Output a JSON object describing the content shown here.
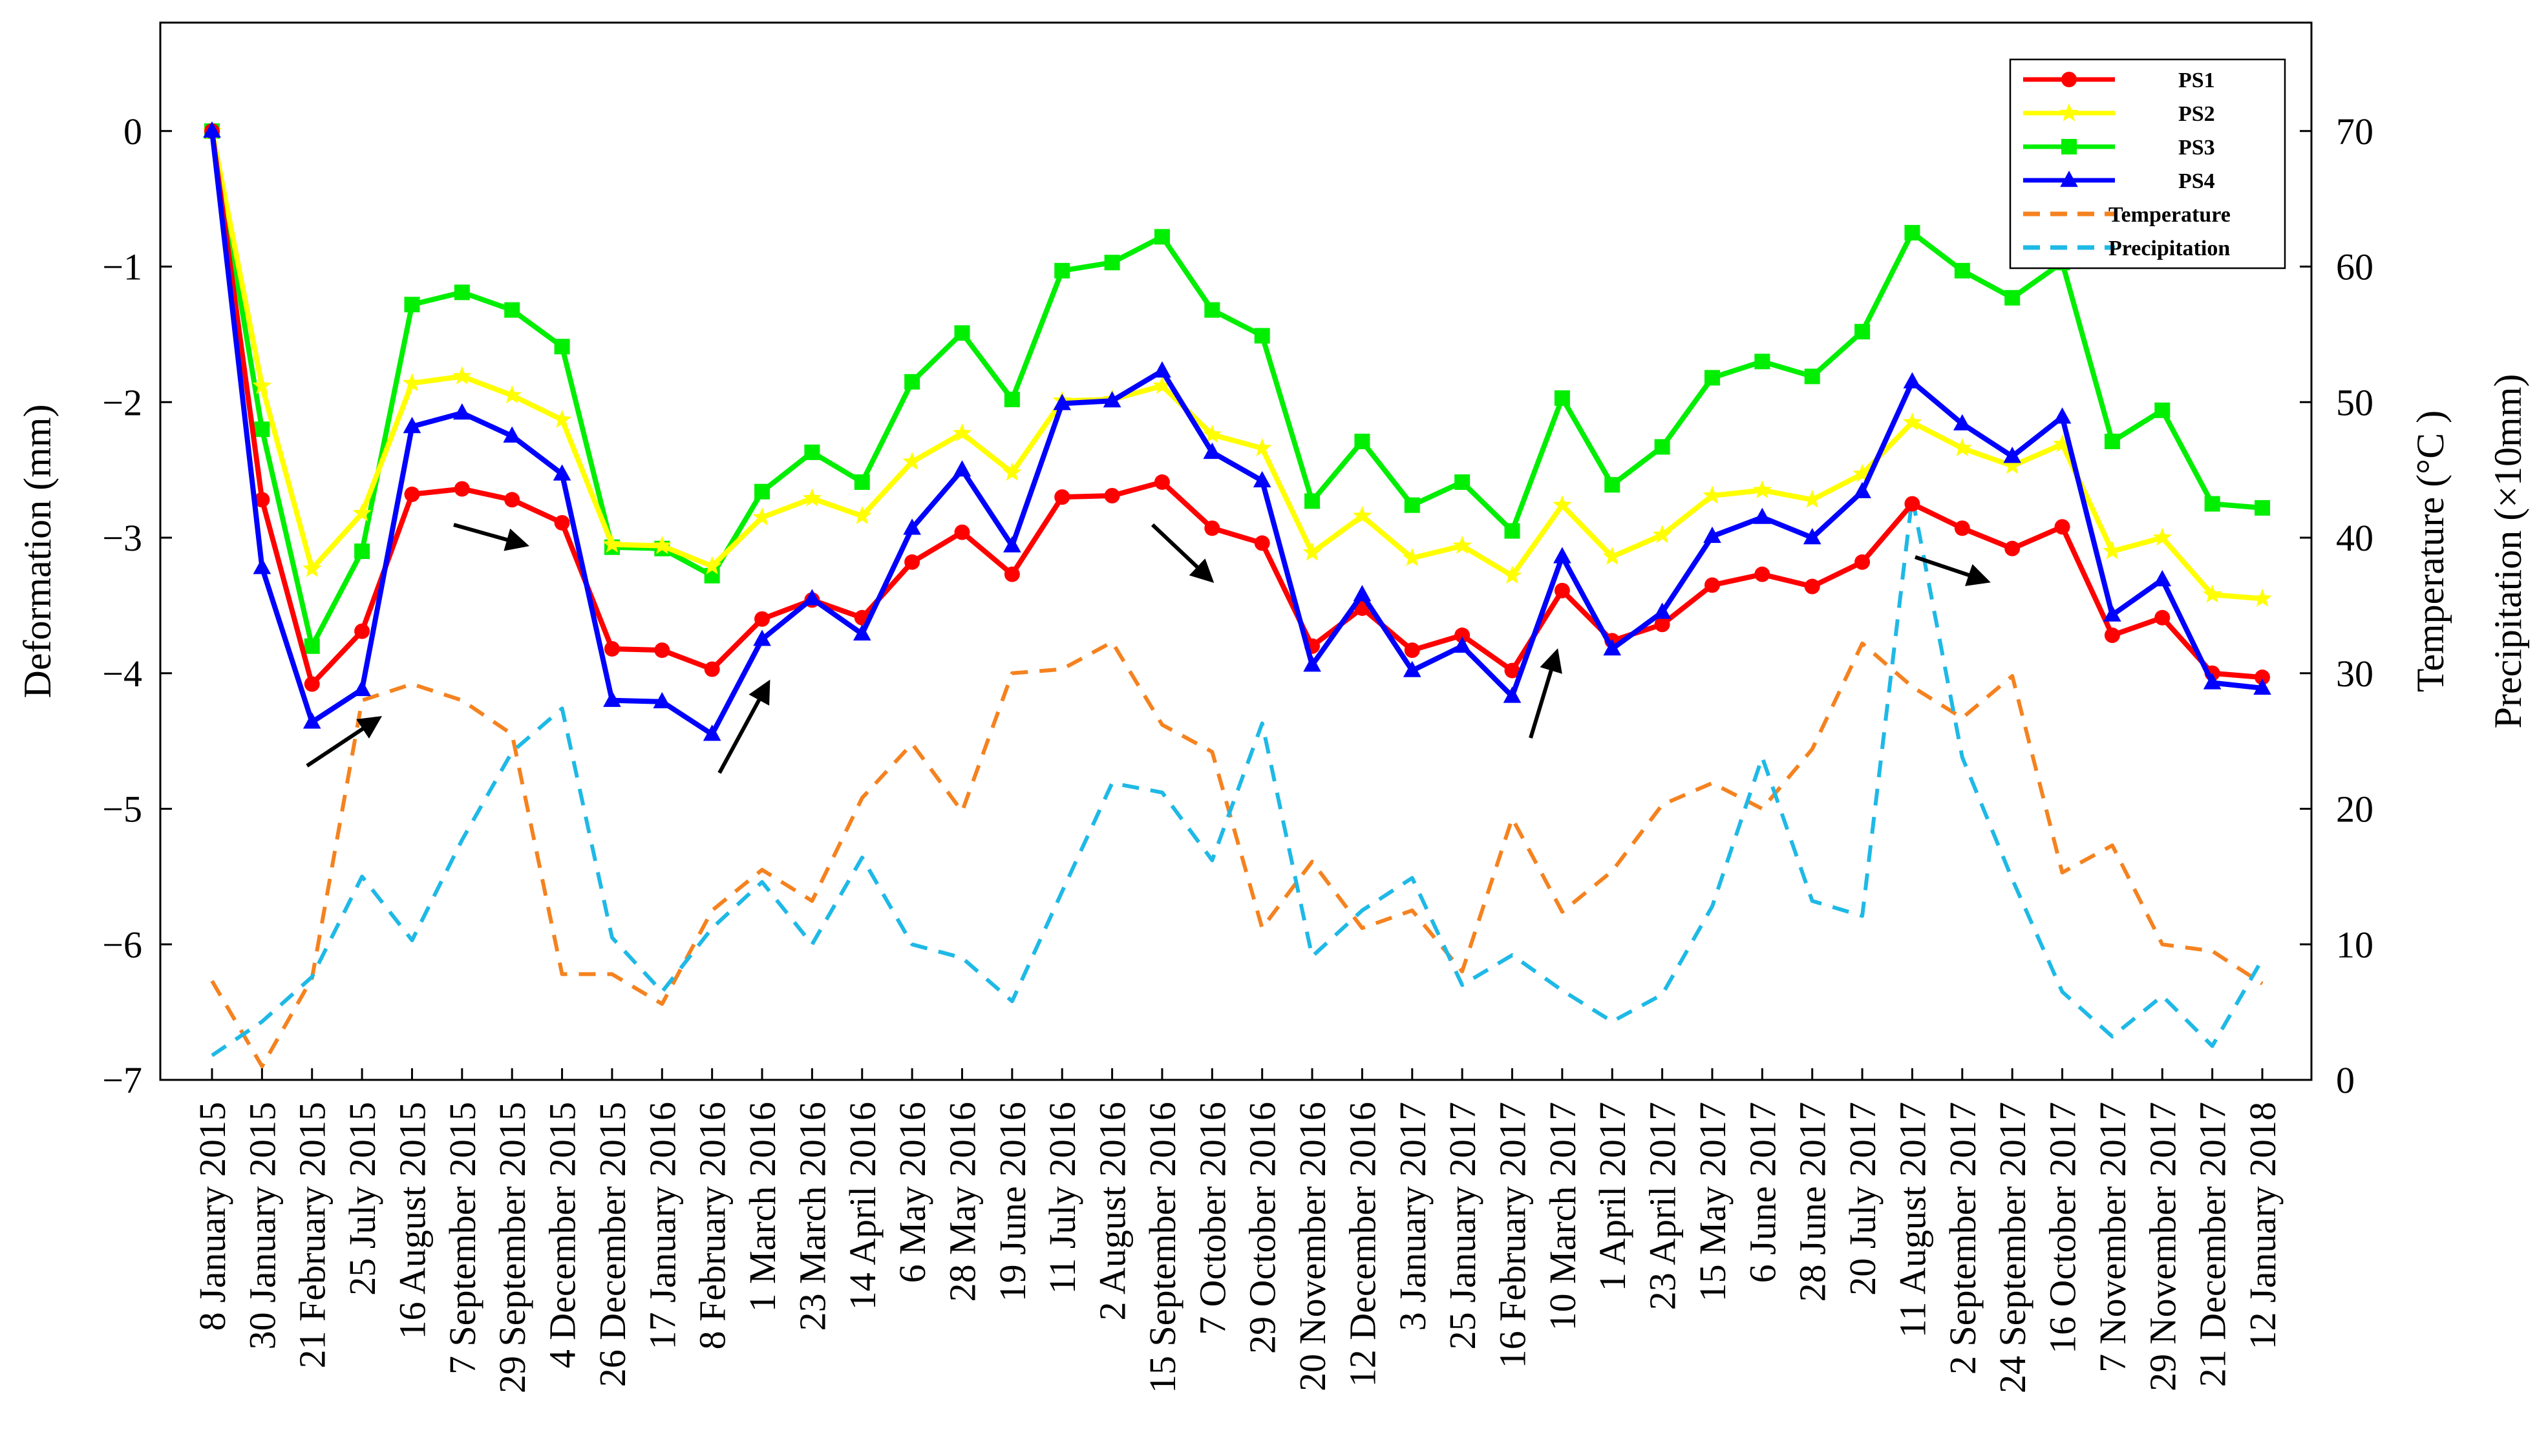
{
  "chart_data": {
    "type": "line",
    "dates": [
      "8 January 2015",
      "30 January 2015",
      "21 February 2015",
      "25 July 2015",
      "16 August 2015",
      "7 September 2015",
      "29 September 2015",
      "4 December 2015",
      "26 December 2015",
      "17 January 2016",
      "8 February 2016",
      "1 March 2016",
      "23 March 2016",
      "14 April 2016",
      "6 May 2016",
      "28 May 2016",
      "19 June 2016",
      "11 July 2016",
      "2 August 2016",
      "15 September 2016",
      "7 October 2016",
      "29 October 2016",
      "20 November 2016",
      "12 December 2016",
      "3 January 2017",
      "25 January 2017",
      "16 February 2017",
      "10 March 2017",
      "1 April 2017",
      "23 April 2017",
      "15 May 2017",
      "6 June 2017",
      "28 June 2017",
      "20 July 2017",
      "11 August 2017",
      "2 September 2017",
      "24 September 2017",
      "16 October 2017",
      "7 November 2017",
      "29 November 2017",
      "21 December 2017",
      "12 January 2018"
    ],
    "ylabel_left": "Deformation (mm)",
    "ylabel_right_1": "Temperature (°C )",
    "ylabel_right_2": "Precipitation (×10mm)",
    "y_left_range": [
      -7,
      0.8
    ],
    "y_left_ticks": [
      "0",
      "−1",
      "−2",
      "−3",
      "−4",
      "−5",
      "−6",
      "−7"
    ],
    "y_left_tick_values": [
      0,
      -1,
      -2,
      -3,
      -4,
      -5,
      -6,
      -7
    ],
    "y_right_range": [
      0,
      78
    ],
    "y_right_ticks": [
      "0",
      "10",
      "20",
      "30",
      "40",
      "50",
      "60",
      "70"
    ],
    "y_right_tick_values": [
      0,
      10,
      20,
      30,
      40,
      50,
      60,
      70
    ],
    "series": [
      {
        "name": "PS1",
        "axis": "left",
        "color": "#ff0000",
        "marker": "circle",
        "dashed": false,
        "values": [
          0,
          -2.72,
          -4.08,
          -3.69,
          -2.68,
          -2.64,
          -2.72,
          -2.89,
          -3.82,
          -3.83,
          -3.97,
          -3.6,
          -3.46,
          -3.59,
          -3.18,
          -2.96,
          -3.27,
          -2.7,
          -2.69,
          -2.59,
          -2.93,
          -3.04,
          -3.8,
          -3.52,
          -3.83,
          -3.72,
          -3.98,
          -3.39,
          -3.76,
          -3.64,
          -3.35,
          -3.27,
          -3.36,
          -3.18,
          -2.75,
          -2.93,
          -3.08,
          -2.92,
          -3.72,
          -3.59,
          -4.0,
          -4.03
        ]
      },
      {
        "name": "PS2",
        "axis": "left",
        "color": "#ffff00",
        "marker": "star",
        "dashed": false,
        "values": [
          0,
          -1.88,
          -3.23,
          -2.82,
          -1.86,
          -1.81,
          -1.95,
          -2.13,
          -3.05,
          -3.06,
          -3.21,
          -2.85,
          -2.71,
          -2.84,
          -2.44,
          -2.23,
          -2.52,
          -1.99,
          -1.98,
          -1.88,
          -2.24,
          -2.34,
          -3.11,
          -2.84,
          -3.15,
          -3.06,
          -3.28,
          -2.76,
          -3.14,
          -2.98,
          -2.69,
          -2.65,
          -2.72,
          -2.53,
          -2.15,
          -2.34,
          -2.47,
          -2.31,
          -3.1,
          -3.0,
          -3.42,
          -3.45
        ]
      },
      {
        "name": "PS3",
        "axis": "left",
        "color": "#00ee00",
        "marker": "square",
        "dashed": false,
        "values": [
          0,
          -2.2,
          -3.8,
          -3.1,
          -1.28,
          -1.19,
          -1.32,
          -1.59,
          -3.07,
          -3.08,
          -3.28,
          -2.66,
          -2.37,
          -2.59,
          -1.85,
          -1.49,
          -1.98,
          -1.03,
          -0.97,
          -0.78,
          -1.32,
          -1.51,
          -2.73,
          -2.29,
          -2.76,
          -2.59,
          -2.95,
          -1.97,
          -2.61,
          -2.33,
          -1.82,
          -1.7,
          -1.81,
          -1.48,
          -0.75,
          -1.03,
          -1.23,
          -0.97,
          -2.29,
          -2.06,
          -2.75,
          -2.78
        ]
      },
      {
        "name": "PS4",
        "axis": "left",
        "color": "#0000ff",
        "marker": "triangle",
        "dashed": false,
        "values": [
          0,
          -3.22,
          -4.36,
          -4.12,
          -2.18,
          -2.08,
          -2.25,
          -2.53,
          -4.2,
          -4.21,
          -4.45,
          -3.75,
          -3.45,
          -3.71,
          -2.93,
          -2.5,
          -3.06,
          -2.01,
          -1.99,
          -1.77,
          -2.37,
          -2.58,
          -3.94,
          -3.42,
          -3.98,
          -3.8,
          -4.17,
          -3.14,
          -3.82,
          -3.55,
          -2.99,
          -2.85,
          -3.0,
          -2.66,
          -1.85,
          -2.16,
          -2.4,
          -2.11,
          -3.57,
          -3.31,
          -4.07,
          -4.11
        ]
      },
      {
        "name": "Temperature",
        "axis": "right",
        "color": "#f5821f",
        "marker": "none",
        "dashed": true,
        "values": [
          7.3,
          1.0,
          7.5,
          28.0,
          29.2,
          28.0,
          25.5,
          7.8,
          7.8,
          5.6,
          12.5,
          15.5,
          13.2,
          20.8,
          24.8,
          19.8,
          30.0,
          30.3,
          32.3,
          26.2,
          24.2,
          11.2,
          16.1,
          11.2,
          12.5,
          8.0,
          19.3,
          12.4,
          15.4,
          20.3,
          21.9,
          20.0,
          24.4,
          32.2,
          29.0,
          26.7,
          29.8,
          15.3,
          17.3,
          10.0,
          9.5,
          7.1
        ]
      },
      {
        "name": "Precipitation",
        "axis": "right",
        "color": "#1eb9e6",
        "marker": "none",
        "dashed": true,
        "values": [
          1.8,
          4.3,
          7.6,
          15.0,
          10.3,
          17.7,
          24.2,
          27.4,
          10.5,
          6.5,
          11.2,
          14.6,
          10.0,
          16.4,
          10.0,
          9.0,
          5.8,
          13.9,
          21.9,
          21.2,
          16.2,
          26.3,
          9.1,
          12.5,
          14.9,
          7.0,
          9.2,
          6.6,
          4.3,
          6.3,
          12.8,
          23.8,
          13.2,
          12.1,
          43.0,
          23.8,
          14.8,
          6.5,
          3.2,
          6.2,
          2.5,
          8.9
        ]
      }
    ],
    "legend_position": "top-right",
    "annotations": "black arrows"
  }
}
